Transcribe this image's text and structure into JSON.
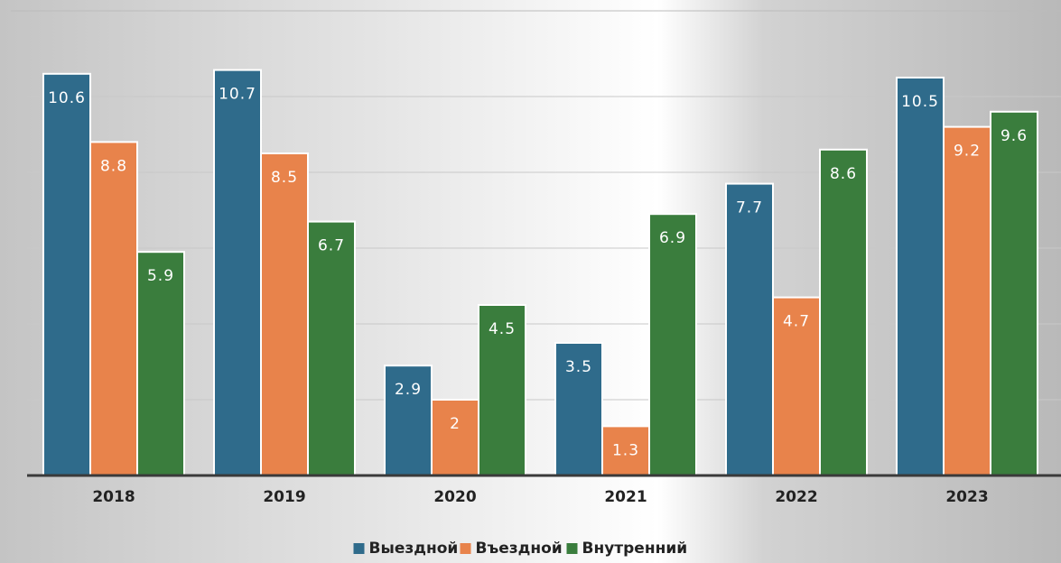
{
  "chart_data": {
    "type": "bar",
    "categories": [
      "2018",
      "2019",
      "2020",
      "2021",
      "2022",
      "2023"
    ],
    "series": [
      {
        "name": "Выездной",
        "color": "#2f6b8b",
        "values": [
          10.6,
          10.7,
          2.9,
          3.5,
          7.7,
          10.5
        ]
      },
      {
        "name": "Въездной",
        "color": "#e8834b",
        "values": [
          8.8,
          8.5,
          2,
          1.3,
          4.7,
          9.2
        ]
      },
      {
        "name": "Внутренний",
        "color": "#3a7d3d",
        "values": [
          5.9,
          6.7,
          4.5,
          6.9,
          8.6,
          9.6
        ]
      }
    ],
    "ylim": [
      0,
      12
    ],
    "yticks": [
      2,
      4,
      6,
      8,
      10
    ],
    "grid": true,
    "legend": "bottom"
  }
}
